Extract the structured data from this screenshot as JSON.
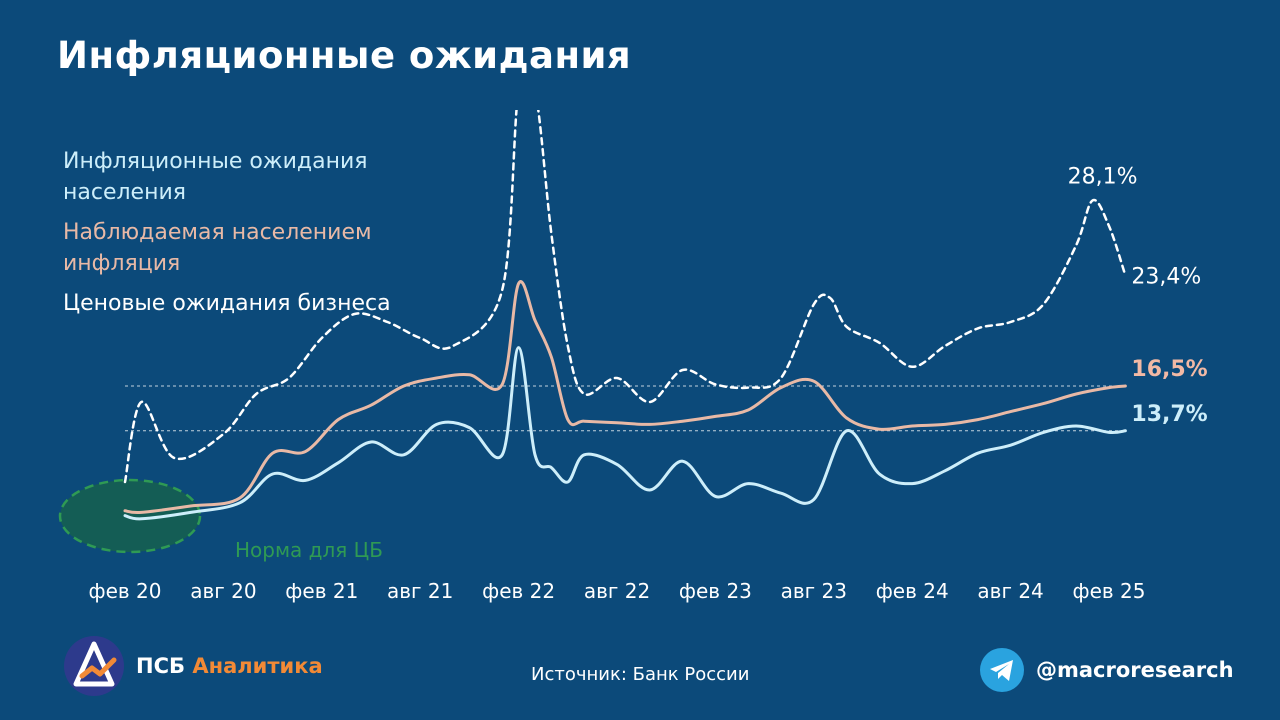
{
  "title": "Инфляционные ожидания",
  "source": "Источник: Банк России",
  "brand": {
    "name_part1": "ПСБ",
    "name_part2": "Аналитика"
  },
  "social": {
    "icon": "telegram-icon",
    "handle": "@macroresearch"
  },
  "colors": {
    "background": "#0c4a7a",
    "household_expectations": "#cdeefa",
    "observed_inflation": "#e8b9a6",
    "business_expectations": "#ffffff",
    "target_zone": "#2f9a54",
    "brand_accent": "#f28a36"
  },
  "chart_data": {
    "type": "line",
    "title": "Инфляционные ожидания",
    "x_tick_labels": [
      "фев 20",
      "авг 20",
      "фев 21",
      "авг 21",
      "фев 22",
      "авг 22",
      "фев 23",
      "авг 23",
      "фев 24",
      "авг 24",
      "фев 25"
    ],
    "ylim": [
      2,
      35
    ],
    "grid": false,
    "legend_position": "left",
    "series": [
      {
        "name": "Инфляционные ожидания населения",
        "style": "solid",
        "color": "#cdeefa",
        "x": [
          "2020-02",
          "2020-03",
          "2020-06",
          "2020-09",
          "2020-11",
          "2021-01",
          "2021-03",
          "2021-05",
          "2021-07",
          "2021-09",
          "2021-11",
          "2022-01",
          "2022-02",
          "2022-03",
          "2022-04",
          "2022-05",
          "2022-06",
          "2022-08",
          "2022-10",
          "2022-12",
          "2023-02",
          "2023-04",
          "2023-06",
          "2023-08",
          "2023-10",
          "2023-12",
          "2024-02",
          "2024-04",
          "2024-06",
          "2024-08",
          "2024-10",
          "2024-12",
          "2025-02",
          "2025-03"
        ],
        "y": [
          8.4,
          8.2,
          8.6,
          9.2,
          11.0,
          10.6,
          11.7,
          13.0,
          12.2,
          14.1,
          13.9,
          12.2,
          18.9,
          12.2,
          11.4,
          10.5,
          12.2,
          11.6,
          10.0,
          11.8,
          9.6,
          10.4,
          9.8,
          9.4,
          13.7,
          11.0,
          10.4,
          11.2,
          12.3,
          12.8,
          13.6,
          14.0,
          13.6,
          13.7
        ]
      },
      {
        "name": "Наблюдаемая населением инфляция",
        "style": "solid",
        "color": "#e8b9a6",
        "x": [
          "2020-02",
          "2020-03",
          "2020-06",
          "2020-09",
          "2020-11",
          "2021-01",
          "2021-03",
          "2021-05",
          "2021-07",
          "2021-09",
          "2021-11",
          "2022-01",
          "2022-02",
          "2022-03",
          "2022-04",
          "2022-05",
          "2022-06",
          "2022-08",
          "2022-10",
          "2022-12",
          "2023-02",
          "2023-04",
          "2023-06",
          "2023-08",
          "2023-10",
          "2023-12",
          "2024-02",
          "2024-04",
          "2024-06",
          "2024-08",
          "2024-10",
          "2024-12",
          "2025-02",
          "2025-03"
        ],
        "y": [
          8.7,
          8.6,
          9.0,
          9.5,
          12.3,
          12.4,
          14.4,
          15.3,
          16.5,
          17.0,
          17.2,
          16.6,
          22.9,
          20.6,
          18.3,
          14.4,
          14.3,
          14.2,
          14.1,
          14.3,
          14.6,
          15.0,
          16.4,
          16.8,
          14.5,
          13.8,
          14.0,
          14.1,
          14.4,
          14.9,
          15.4,
          16.0,
          16.4,
          16.5
        ]
      },
      {
        "name": "Ценовые ожидания бизнеса",
        "style": "dashed",
        "color": "#ffffff",
        "x": [
          "2020-02",
          "2020-03",
          "2020-05",
          "2020-08",
          "2020-10",
          "2020-12",
          "2021-02",
          "2021-04",
          "2021-06",
          "2021-08",
          "2021-10",
          "2022-01",
          "2022-02",
          "2022-03",
          "2022-04",
          "2022-05",
          "2022-06",
          "2022-08",
          "2022-10",
          "2022-12",
          "2023-02",
          "2023-04",
          "2023-06",
          "2023-08",
          "2023-09",
          "2023-10",
          "2023-12",
          "2024-02",
          "2024-04",
          "2024-06",
          "2024-08",
          "2024-10",
          "2024-12",
          "2025-01",
          "2025-02",
          "2025-03"
        ],
        "y": [
          10.5,
          15.5,
          12.0,
          13.5,
          16.0,
          17.0,
          19.5,
          21.0,
          20.5,
          19.5,
          19.0,
          22.5,
          35.0,
          35.0,
          26.0,
          19.0,
          16.0,
          17.0,
          15.5,
          17.5,
          16.6,
          16.4,
          17.0,
          21.6,
          22.0,
          20.2,
          19.2,
          17.7,
          19.0,
          20.1,
          20.5,
          21.6,
          25.3,
          28.1,
          26.5,
          23.4
        ]
      }
    ],
    "reference_lines": [
      {
        "series": "Наблюдаемая населением инфляция",
        "value": 16.5,
        "label": "16,5%"
      },
      {
        "series": "Инфляционные ожидания населения",
        "value": 13.7,
        "label": "13,7%"
      }
    ],
    "annotations": [
      {
        "text": "28,1%",
        "series": "Ценовые ожидания бизнеса",
        "x": "2025-01",
        "y": 28.1
      },
      {
        "text": "23,4%",
        "series": "Ценовые ожидания бизнеса",
        "x": "2025-03",
        "y": 23.4
      },
      {
        "text": "16,5%",
        "series": "Наблюдаемая населением инфляция",
        "x": "2025-03",
        "y": 16.5
      },
      {
        "text": "13,7%",
        "series": "Инфляционные ожидания населения",
        "x": "2025-03",
        "y": 13.7
      }
    ],
    "target_zone": {
      "label": "Норма для ЦБ",
      "x": "2020-02",
      "y": 8.5
    }
  }
}
